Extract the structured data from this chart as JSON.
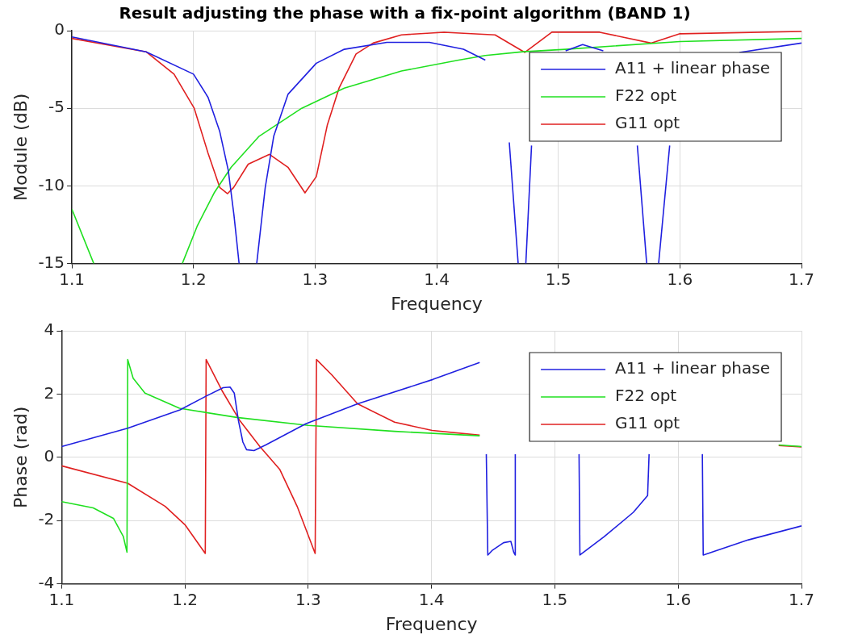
{
  "chart_data": [
    {
      "type": "line",
      "title": "Result adjusting the phase with a fix-point algorithm (BAND 1)",
      "xlabel": "Frequency",
      "ylabel": "Module (dB)",
      "xlim": [
        1.1,
        1.7
      ],
      "xticks": [
        1.1,
        1.2,
        1.3,
        1.4,
        1.5,
        1.6,
        1.7
      ],
      "ylim": [
        -15,
        0
      ],
      "yticks": [
        -15,
        -10,
        -5,
        0
      ],
      "grid": true,
      "legend": "top right",
      "series": [
        {
          "name": "A11 + linear phase",
          "color": "#2020e0",
          "x": [
            1.1,
            1.161,
            1.2,
            1.212,
            1.2216,
            1.2286,
            1.2333,
            1.2375,
            1.245,
            1.252,
            1.259,
            1.266,
            1.2777,
            1.301,
            1.324,
            1.359,
            1.394,
            1.422,
            1.44,
            1.45,
            1.4597,
            1.467,
            1.47,
            1.4733,
            1.478,
            1.49,
            1.506,
            1.52,
            1.537,
            1.55,
            1.565,
            1.5727,
            1.577,
            1.5825,
            1.5916,
            1.62,
            1.649,
            1.7
          ],
          "values": [
            -0.4,
            -1.36,
            -2.8,
            -4.3,
            -6.5,
            -9,
            -11.9,
            -15,
            null,
            -15,
            -10.1,
            -6.8,
            -4.1,
            -2.1,
            -1.2,
            -0.75,
            -0.75,
            -1.2,
            -1.9,
            null,
            -7.2,
            -15,
            null,
            -15,
            -7.4,
            null,
            -1.3,
            -0.9,
            -1.3,
            null,
            -7.4,
            -15,
            null,
            -15,
            -7.4,
            null,
            -1.4,
            -0.8
          ]
        },
        {
          "name": "F22 opt",
          "color": "#20e020",
          "x": [
            1.1,
            1.118,
            1.15,
            1.1908,
            1.203,
            1.217,
            1.231,
            1.254,
            1.289,
            1.324,
            1.371,
            1.418,
            1.44,
            1.471,
            1.506,
            1.6,
            1.7
          ],
          "values": [
            -11.5,
            -15,
            null,
            -15,
            -12.6,
            -10.45,
            -8.8,
            -6.8,
            -5.0,
            -3.7,
            -2.6,
            -1.9,
            -1.6,
            -1.36,
            -1.2,
            -0.7,
            -0.5
          ]
        },
        {
          "name": "G11 opt",
          "color": "#e02020",
          "x": [
            1.1,
            1.161,
            1.184,
            1.2006,
            1.212,
            1.2216,
            1.228,
            1.233,
            1.245,
            1.2625,
            1.2777,
            1.2917,
            1.301,
            1.31,
            1.3197,
            1.3337,
            1.3477,
            1.371,
            1.406,
            1.448,
            1.4725,
            1.4947,
            1.534,
            1.5762,
            1.6,
            1.7
          ],
          "values": [
            -0.5,
            -1.36,
            -2.8,
            -5.0,
            -7.9,
            -10.1,
            -10.5,
            -10.1,
            -8.6,
            -7.97,
            -8.8,
            -10.45,
            -9.4,
            -6.1,
            -3.7,
            -1.5,
            -0.8,
            -0.27,
            -0.1,
            -0.27,
            -1.4,
            -0.1,
            -0.1,
            -0.8,
            -0.2,
            -0.05
          ]
        }
      ]
    },
    {
      "type": "line",
      "xlabel": "Frequency",
      "ylabel": "Phase (rad)",
      "xlim": [
        1.1,
        1.7
      ],
      "xticks": [
        1.1,
        1.2,
        1.3,
        1.4,
        1.5,
        1.6,
        1.7
      ],
      "ylim": [
        -4,
        4
      ],
      "yticks": [
        -4,
        -2,
        0,
        2,
        4
      ],
      "grid": true,
      "legend": "top right",
      "series": [
        {
          "name": "A11 + linear phase",
          "color": "#2020e0",
          "x": [
            1.1,
            1.1536,
            1.196,
            1.217,
            1.231,
            1.2366,
            1.24,
            1.2434,
            1.247,
            1.25,
            1.256,
            1.2655,
            1.298,
            1.34,
            1.401,
            1.439,
            1.442,
            1.4444,
            1.4456,
            1.449,
            1.4584,
            1.4643,
            1.4666,
            1.4678,
            1.4679,
            1.49,
            1.5196,
            1.5203,
            1.54,
            1.5636,
            1.5752,
            1.5764,
            1.6,
            1.6196,
            1.6203,
            1.657,
            1.7
          ],
          "values": [
            0.34,
            0.92,
            1.5,
            1.93,
            2.2,
            2.22,
            2.03,
            1.16,
            0.48,
            0.24,
            0.21,
            0.39,
            1.06,
            1.69,
            2.46,
            3.0,
            null,
            0.1,
            -3.09,
            -2.95,
            -2.7,
            -2.66,
            -3.0,
            -3.09,
            0.1,
            null,
            0.1,
            -3.09,
            -2.51,
            -1.74,
            -1.21,
            0.1,
            null,
            0.1,
            -3.09,
            -2.61,
            -2.17
          ]
        },
        {
          "name": "F22 opt",
          "color": "#20e020",
          "x": [
            1.1,
            1.1256,
            1.142,
            1.15,
            1.153,
            1.1536,
            1.158,
            1.1676,
            1.1956,
            1.242,
            1.3,
            1.37,
            1.439,
            1.5,
            1.6815,
            1.7
          ],
          "values": [
            -1.4,
            -1.6,
            -1.93,
            -2.5,
            -3.0,
            3.09,
            2.5,
            2.03,
            1.55,
            1.26,
            1.01,
            0.82,
            0.68,
            null,
            0.39,
            0.34
          ]
        },
        {
          "name": "G11 opt",
          "color": "#e02020",
          "x": [
            1.1,
            1.1536,
            1.184,
            1.2,
            1.2165,
            1.2172,
            1.2305,
            1.2445,
            1.2608,
            1.277,
            1.291,
            1.3056,
            1.3067,
            1.319,
            1.34,
            1.37,
            1.4005,
            1.439,
            1.5,
            1.6815,
            1.7
          ],
          "values": [
            -0.27,
            -0.82,
            -1.55,
            -2.13,
            -3.04,
            3.09,
            2.08,
            1.16,
            0.34,
            -0.39,
            -1.55,
            -3.04,
            3.09,
            2.61,
            1.69,
            1.11,
            0.85,
            0.7,
            null,
            0.37,
            0.33
          ]
        }
      ]
    }
  ]
}
